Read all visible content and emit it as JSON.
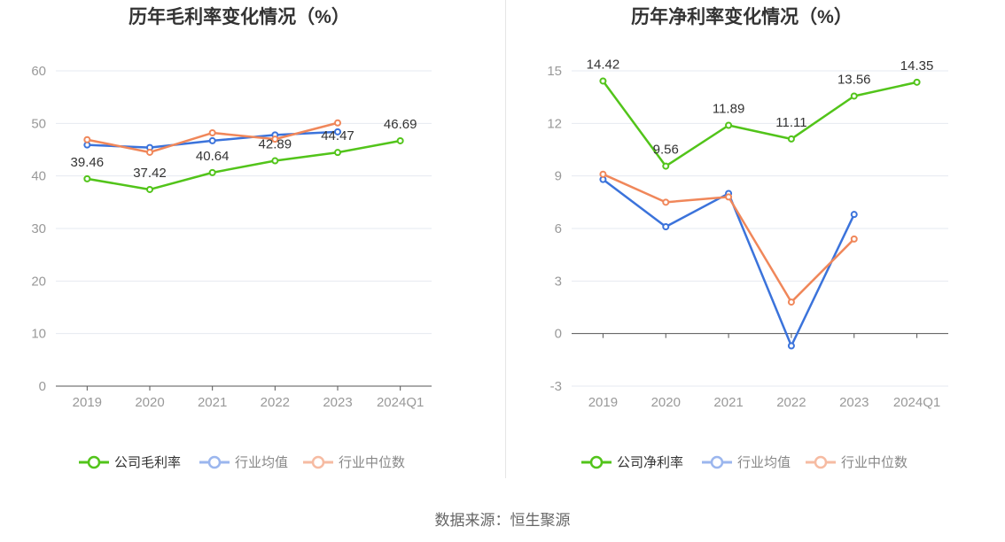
{
  "chart_data": [
    {
      "type": "line",
      "title": "历年毛利率变化情况（%）",
      "categories": [
        "2019",
        "2020",
        "2021",
        "2022",
        "2023",
        "2024Q1"
      ],
      "ylim": [
        0,
        60
      ],
      "yticks": [
        0,
        10,
        20,
        30,
        40,
        50,
        60
      ],
      "grid": true,
      "legend_position": "bottom",
      "series": [
        {
          "name": "公司毛利率",
          "color": "#52c41a",
          "labels": true,
          "values": [
            39.46,
            37.42,
            40.64,
            42.89,
            44.47,
            46.69
          ]
        },
        {
          "name": "行业均值",
          "color": "#3b73db",
          "labels": false,
          "values": [
            45.9,
            45.4,
            46.7,
            47.8,
            48.4,
            null
          ]
        },
        {
          "name": "行业中位数",
          "color": "#f0875a",
          "labels": false,
          "values": [
            46.9,
            44.5,
            48.2,
            47.0,
            50.1,
            null
          ]
        }
      ]
    },
    {
      "type": "line",
      "title": "历年净利率变化情况（%）",
      "categories": [
        "2019",
        "2020",
        "2021",
        "2022",
        "2023",
        "2024Q1"
      ],
      "ylim": [
        -3,
        15
      ],
      "yticks": [
        -3,
        0,
        3,
        6,
        9,
        12,
        15
      ],
      "grid": true,
      "legend_position": "bottom",
      "series": [
        {
          "name": "公司净利率",
          "color": "#52c41a",
          "labels": true,
          "values": [
            14.42,
            9.56,
            11.89,
            11.11,
            13.56,
            14.35
          ]
        },
        {
          "name": "行业均值",
          "color": "#3b73db",
          "labels": false,
          "values": [
            8.8,
            6.1,
            8.0,
            -0.7,
            6.8,
            null
          ]
        },
        {
          "name": "行业中位数",
          "color": "#f0875a",
          "labels": false,
          "values": [
            9.1,
            7.5,
            7.8,
            1.8,
            5.4,
            null
          ]
        }
      ]
    }
  ],
  "footer": {
    "source": "数据来源：恒生聚源"
  }
}
